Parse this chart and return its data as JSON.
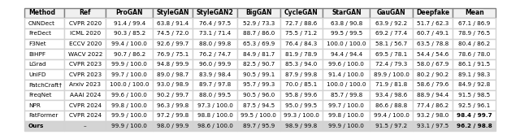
{
  "columns": [
    "Method",
    "Ref",
    "ProGAN",
    "StyleGAN",
    "StyleGAN2",
    "BigGAN",
    "CycleGAN",
    "StarGAN",
    "GauGAN",
    "Deepfake",
    "Mean"
  ],
  "rows": [
    [
      "CNNDect",
      "CVPR 2020",
      "91.4 / 99.4",
      "63.8 / 91.4",
      "76.4 / 97.5",
      "52.9 / 73.3",
      "72.7 / 88.6",
      "63.8 / 90.8",
      "63.9 / 92.2",
      "51.7 / 62.3",
      "67.1 / 86.9"
    ],
    [
      "FreDect",
      "ICML 2020",
      "90.3 / 85.2",
      "74.5 / 72.0",
      "73.1 / 71.4",
      "88.7 / 86.0",
      "75.5 / 71.2",
      "99.5 / 99.5",
      "69.2 / 77.4",
      "60.7 / 49.1",
      "78.9 / 76.5"
    ],
    [
      "F3Net",
      "ECCV 2020",
      "99.4 / 100.0",
      "92.6 / 99.7",
      "88.0 / 99.8",
      "65.3 / 69.9",
      "76.4 / 84.3",
      "100.0 / 100.0",
      "58.1 / 56.7",
      "63.5 / 78.8",
      "80.4 / 86.2"
    ],
    [
      "BiHPF",
      "WACV 2022",
      "90.7 / 86.2",
      "76.9 / 75.1",
      "76.2 / 74.7",
      "84.9 / 81.7",
      "81.9 / 78.9",
      "94.4 / 94.4",
      "69.5 / 78.1",
      "54.4 / 54.6",
      "78.6 / 78.0"
    ],
    [
      "LGrad",
      "CVPR 2023",
      "99.9 / 100.0",
      "94.8 / 99.9",
      "96.0 / 99.9",
      "82.5 / 90.7",
      "85.3 / 94.0",
      "99.6 / 100.0",
      "72.4 / 79.3",
      "58.0 / 67.9",
      "86.1 / 91.5"
    ],
    [
      "UniFD",
      "CVPR 2023",
      "99.7 / 100.0",
      "89.0 / 98.7",
      "83.9 / 98.4",
      "90.5 / 99.1",
      "87.9 / 99.8",
      "91.4 / 100.0",
      "89.9 / 100.0",
      "80.2 / 90.2",
      "89.1 / 98.3"
    ],
    [
      "PatchCraft†",
      "Arxiv 2023",
      "100.0 / 100.0",
      "93.0 / 98.9",
      "89.7 / 97.8",
      "95.7 / 99.3",
      "70.0 / 85.1",
      "100.0 / 100.0",
      "71.9 / 81.8",
      "58.6 / 79.6",
      "84.9 / 92.8"
    ],
    [
      "FreqNet",
      "AAAI 2024",
      "99.6 / 100.0",
      "90.2 / 99.7",
      "88.0 / 99.5",
      "90.5 / 96.0",
      "95.8 / 99.6",
      "85.7 / 99.8",
      "93.4 / 98.6",
      "88.9 / 94.4",
      "91.5 / 98.5"
    ],
    [
      "NPR",
      "CVPR 2024",
      "99.8 / 100.0",
      "96.3 / 99.8",
      "97.3 / 100.0",
      "87.5 / 94.5",
      "95.0 / 99.5",
      "99.7 / 100.0",
      "86.6 / 88.8",
      "77.4 / 86.2",
      "92.5 / 96.1"
    ],
    [
      "FatFormer",
      "CVPR 2024",
      "99.9 / 100.0",
      "97.2 / 99.8",
      "98.8 / 100.0",
      "99.5 / 100.0",
      "99.3 / 100.0",
      "99.8 / 100.0",
      "99.4 / 100.0",
      "93.2 / 98.0",
      "98.4 / 99.7"
    ],
    [
      "Ours",
      "–",
      "99.9 / 100.0",
      "98.0 / 99.9",
      "98.6 / 100.0",
      "89.7 / 95.9",
      "98.9 / 99.8",
      "99.9 / 100.0",
      "91.5 / 97.2",
      "93.1 / 97.5",
      "96.2 / 98.8"
    ]
  ],
  "header_bg": "#f0f0f0",
  "ours_bg": "#d8d8d8",
  "last_col_divider": true,
  "bold_last_row": true,
  "bold_fatformer_mean": true,
  "underline_ours_mean": true
}
